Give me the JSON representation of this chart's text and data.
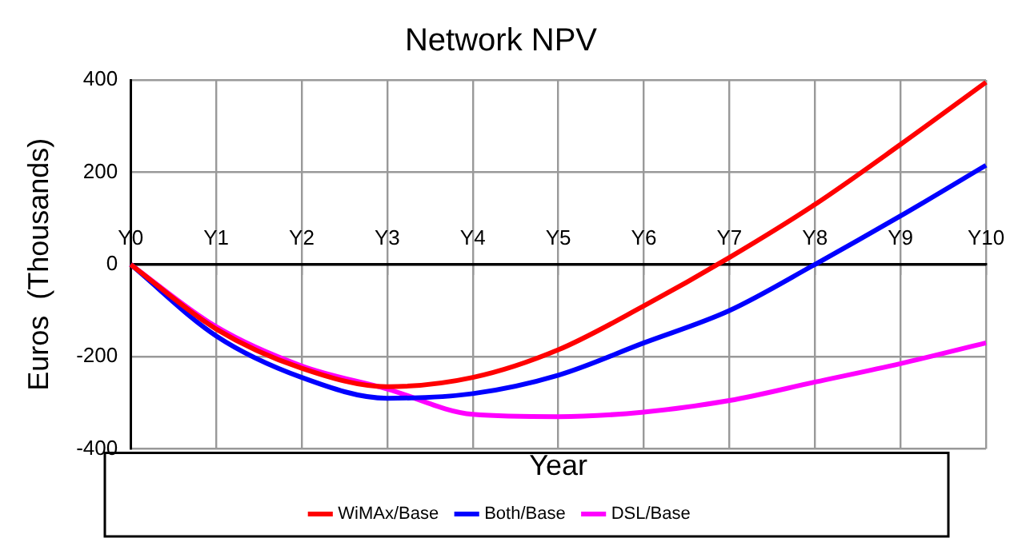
{
  "chart_data": {
    "type": "line",
    "title": "Network NPV",
    "xlabel": "Year",
    "ylabel": "Euros  (Thousands)",
    "categories": [
      "Y0",
      "Y1",
      "Y2",
      "Y3",
      "Y4",
      "Y5",
      "Y6",
      "Y7",
      "Y8",
      "Y9",
      "Y10"
    ],
    "series": [
      {
        "name": "WiMAx/Base",
        "color": "#ff0000",
        "values": [
          0,
          -140,
          -225,
          -265,
          -245,
          -185,
          -90,
          15,
          130,
          260,
          395
        ]
      },
      {
        "name": "Both/Base",
        "color": "#0000ff",
        "values": [
          0,
          -155,
          -245,
          -290,
          -280,
          -240,
          -170,
          -100,
          0,
          105,
          215
        ]
      },
      {
        "name": "DSL/Base",
        "color": "#ff00ff",
        "values": [
          0,
          -135,
          -220,
          -270,
          -325,
          -330,
          -320,
          -295,
          -255,
          -215,
          -170
        ]
      }
    ],
    "ylim": [
      -400,
      400
    ],
    "yticks": [
      -400,
      -200,
      0,
      200,
      400
    ],
    "grid": true,
    "legend": "bottom",
    "marker": "none",
    "line_style": "solid"
  }
}
